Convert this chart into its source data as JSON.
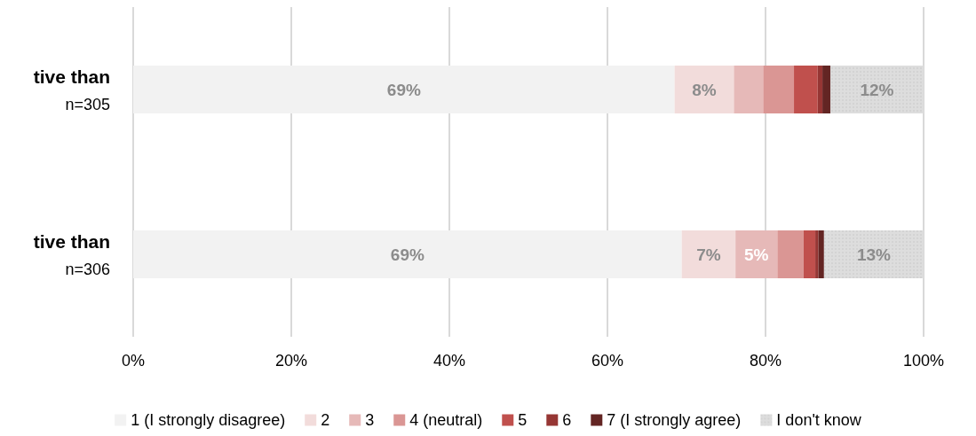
{
  "chart_data": {
    "type": "bar",
    "orientation": "horizontal",
    "stacked": true,
    "categories": [
      "tive than\nn=305",
      "tive than\nn=306"
    ],
    "series": [
      {
        "name": "1 (I strongly disagree)",
        "color": "#f2f2f2",
        "values": [
          68.5,
          69.4
        ],
        "value_labels": [
          "69%",
          "69%"
        ]
      },
      {
        "name": "2",
        "color": "#f2dcdb",
        "values": [
          7.5,
          6.8
        ],
        "value_labels": [
          "8%",
          "7%"
        ]
      },
      {
        "name": "3",
        "color": "#e6b9b8",
        "values": [
          3.7,
          5.3
        ],
        "value_labels": [
          null,
          "5%"
        ]
      },
      {
        "name": "4 (neutral)",
        "color": "#da9694",
        "values": [
          3.9,
          3.3
        ]
      },
      {
        "name": "5",
        "color": "#c0504d",
        "values": [
          3.0,
          1.5
        ]
      },
      {
        "name": "6",
        "color": "#963634",
        "values": [
          0.6,
          0.4
        ]
      },
      {
        "name": "7 (I strongly agree)",
        "color": "#632523",
        "values": [
          1.0,
          0.7
        ]
      },
      {
        "name": "I don't know",
        "color": "#dddddd",
        "values": [
          11.8,
          12.6
        ],
        "value_labels": [
          "12%",
          "13%"
        ]
      }
    ],
    "xlim": [
      0,
      100
    ],
    "xticks": [
      {
        "value": 0,
        "label": "0%"
      },
      {
        "value": 20,
        "label": "20%"
      },
      {
        "value": 40,
        "label": "40%"
      },
      {
        "value": 60,
        "label": "60%"
      },
      {
        "value": 80,
        "label": "80%"
      },
      {
        "value": 100,
        "label": "100%"
      }
    ],
    "grid": "x",
    "legend": "bottom"
  }
}
